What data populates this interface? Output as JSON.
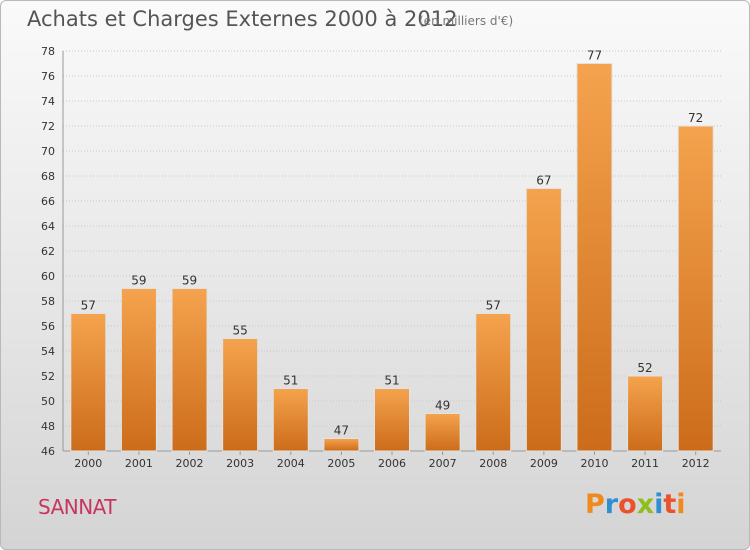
{
  "header": {
    "title": "Achats et Charges Externes 2000 à 2012",
    "subtitle": "(en milliers d'€)"
  },
  "footer": {
    "city": "SANNAT",
    "brand": "Proxiti"
  },
  "colors": {
    "bar_light": "#f5a34e",
    "bar_dark": "#cc6c1a",
    "brand_letters": [
      "#f08a1c",
      "#2f8fd0",
      "#e8532e",
      "#8fbf1f",
      "#2f8fd0",
      "#e8532e",
      "#f08a1c"
    ]
  },
  "chart_data": {
    "type": "bar",
    "title": "Achats et Charges Externes 2000 à 2012",
    "subtitle": "(en milliers d'€)",
    "categories": [
      "2000",
      "2001",
      "2002",
      "2003",
      "2004",
      "2005",
      "2006",
      "2007",
      "2008",
      "2009",
      "2010",
      "2011",
      "2012"
    ],
    "values": [
      57,
      59,
      59,
      55,
      51,
      47,
      51,
      49,
      57,
      67,
      77,
      52,
      72
    ],
    "data_labels": [
      "57",
      "59",
      "59",
      "55",
      "51",
      "47",
      "51",
      "49",
      "57",
      "67",
      "77",
      "52",
      "72"
    ],
    "ylim": [
      46,
      78
    ],
    "yticks": [
      46,
      48,
      50,
      52,
      54,
      56,
      58,
      60,
      62,
      64,
      66,
      68,
      70,
      72,
      74,
      76,
      78
    ],
    "grid": true,
    "legend": "none"
  }
}
